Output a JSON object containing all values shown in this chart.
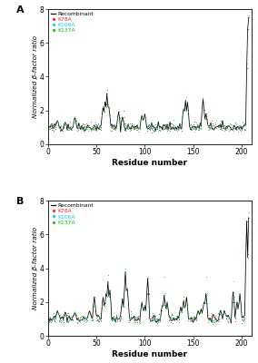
{
  "xlabel": "Residue number",
  "ylabel": "Normalized β-factor ratio",
  "xlim": [
    0,
    210
  ],
  "ylim": [
    0,
    8
  ],
  "yticks": [
    0,
    2,
    4,
    6,
    8
  ],
  "xticks": [
    0,
    50,
    100,
    150,
    200
  ],
  "legend_labels": [
    "Recombinant",
    "K78A",
    "K106A",
    "K137A"
  ],
  "legend_colors": [
    "black",
    "#ff2020",
    "#00ccff",
    "#00cc00"
  ],
  "n_residues": 207,
  "background_color": "white",
  "panel_labels": [
    "A",
    "B"
  ]
}
